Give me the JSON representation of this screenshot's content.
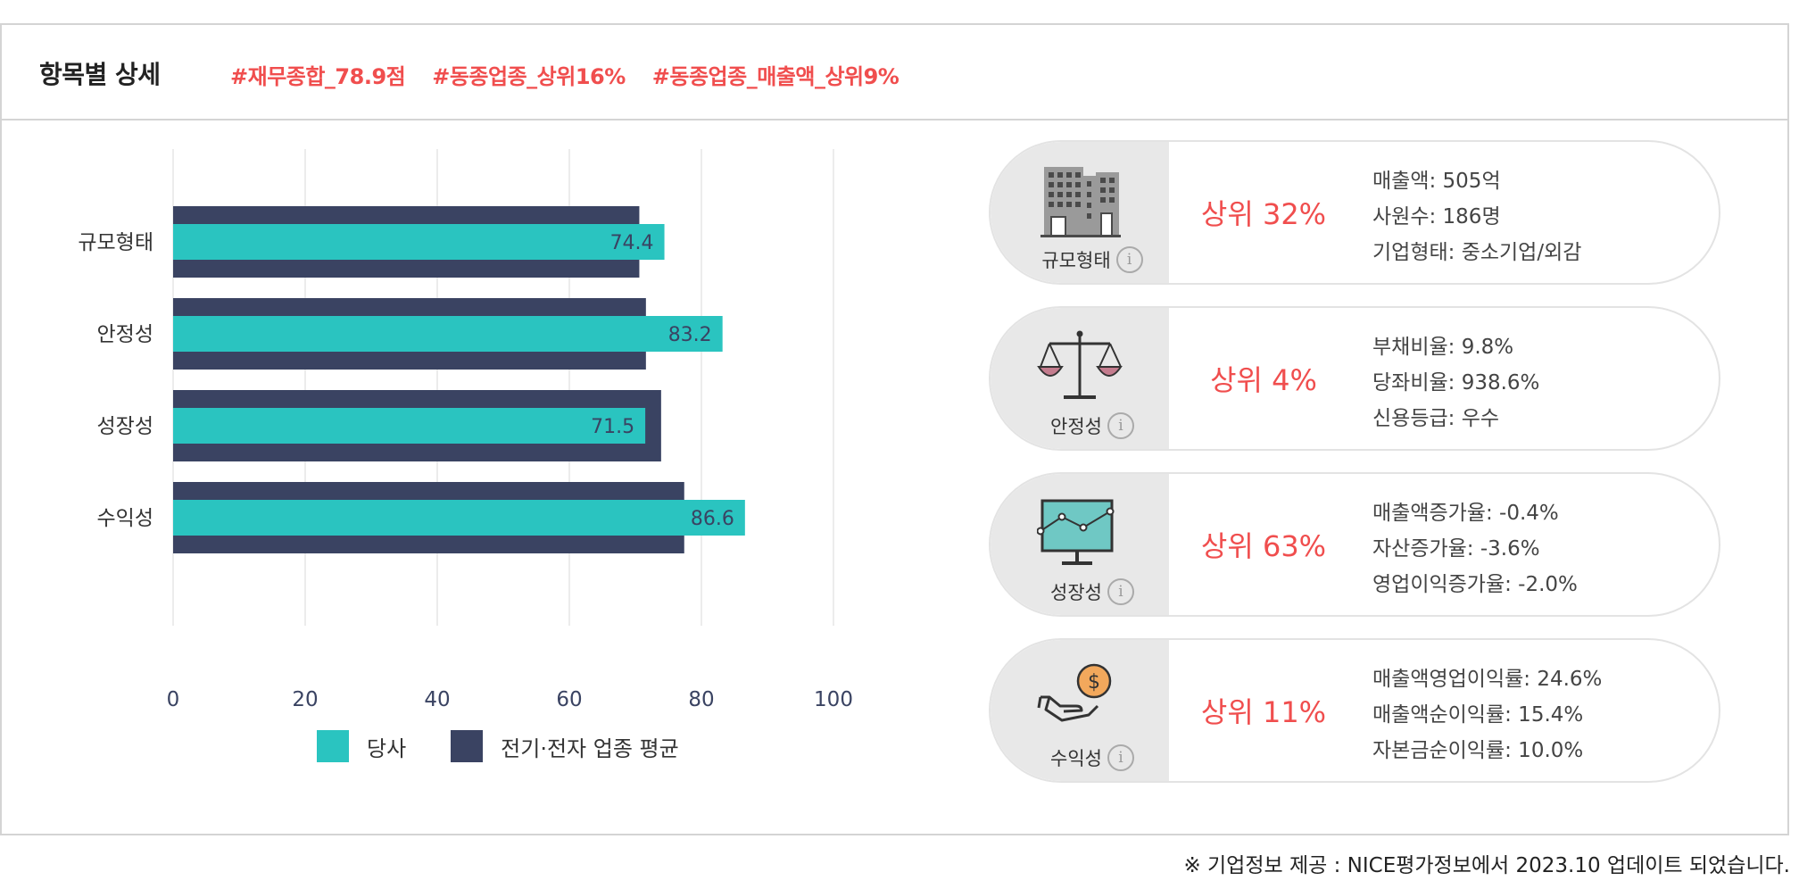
{
  "header": {
    "title": "항목별 상세",
    "tags": [
      "#재무종합_78.9점",
      "#동종업종_상위16%",
      "#동종업종_매출액_상위9%"
    ]
  },
  "chart_data": {
    "type": "bar",
    "orientation": "horizontal",
    "categories": [
      "규모형태",
      "안정성",
      "성장성",
      "수익성"
    ],
    "series": [
      {
        "name": "당사",
        "values": [
          74.4,
          83.2,
          71.5,
          86.6
        ],
        "color": "#2ac4c0"
      },
      {
        "name": "전기·전자 업종 평균",
        "values": [
          70.6,
          71.6,
          73.9,
          77.4
        ],
        "color": "#3a4362"
      }
    ],
    "xlim": [
      0,
      100
    ],
    "xticks": [
      "0",
      "20",
      "40",
      "60",
      "80",
      "100"
    ],
    "grid": true,
    "legend_position": "bottom"
  },
  "legend": {
    "company_label": "당사",
    "industry_label": "전기·전자 업종 평균"
  },
  "cards": [
    {
      "icon": "building-icon",
      "name": "규모형태",
      "rank": "상위 32%",
      "details": [
        "매출액: 505억",
        "사원수: 186명",
        "기업형태: 중소기업/외감"
      ]
    },
    {
      "icon": "scale-icon",
      "name": "안정성",
      "rank": "상위 4%",
      "details": [
        "부채비율: 9.8%",
        "당좌비율: 938.6%",
        "신용등급: 우수"
      ]
    },
    {
      "icon": "monitor-chart-icon",
      "name": "성장성",
      "rank": "상위 63%",
      "details": [
        "매출액증가율: -0.4%",
        "자산증가율: -3.6%",
        "영업이익증가율: -2.0%"
      ]
    },
    {
      "icon": "hand-coin-icon",
      "name": "수익성",
      "rank": "상위 11%",
      "details": [
        "매출액영업이익률: 24.6%",
        "매출액순이익률: 15.4%",
        "자본금순이익률: 10.0%"
      ]
    }
  ],
  "info_glyph": "i",
  "footnote": "※ 기업정보 제공 : NICE평가정보에서 2023.10 업데이트 되었습니다."
}
